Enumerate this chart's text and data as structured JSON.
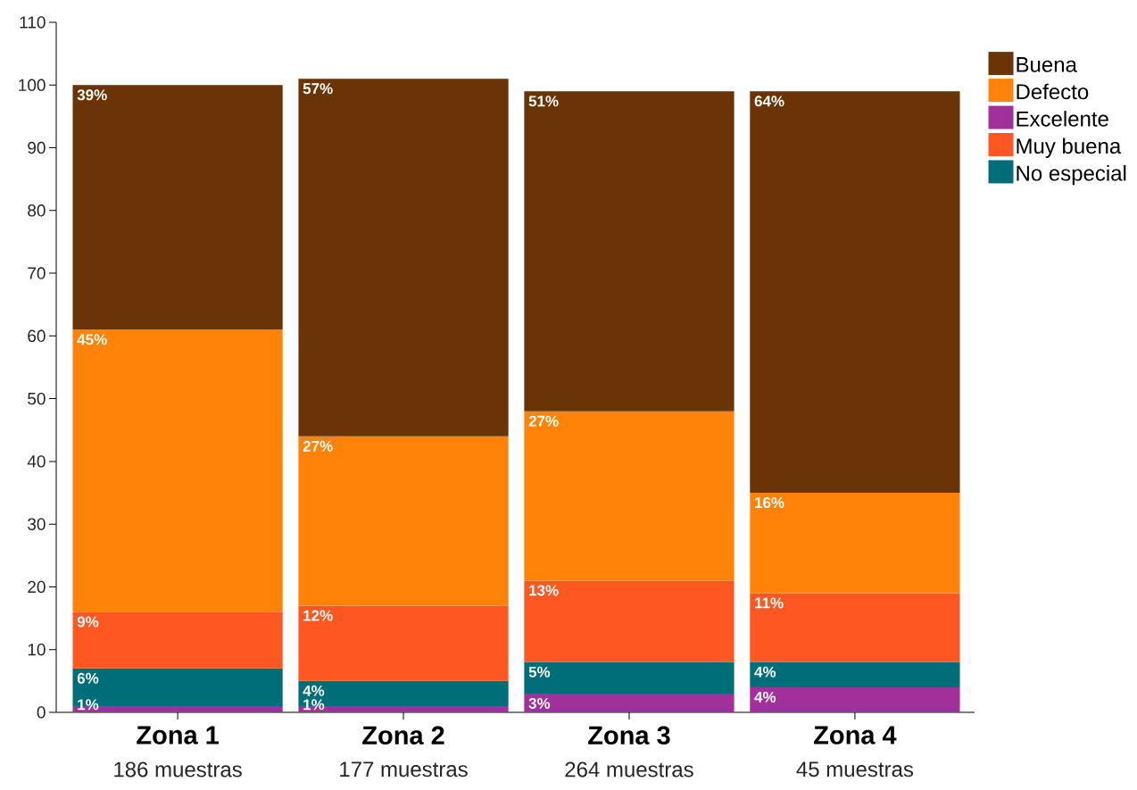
{
  "chart_data": {
    "type": "bar",
    "stacked": true,
    "categories": [
      "Zona 1",
      "Zona 2",
      "Zona 3",
      "Zona 4"
    ],
    "annotations": [
      "186 muestras",
      "177 muestras",
      "264 muestras",
      "45 muestras"
    ],
    "series": [
      {
        "name": "Excelente",
        "color": "#a0309a",
        "values": [
          1,
          1,
          3,
          4
        ],
        "value_labels": [
          "1%",
          "1%",
          "3%",
          "4%"
        ]
      },
      {
        "name": "No especial",
        "color": "#006e78",
        "values": [
          6,
          4,
          5,
          4
        ],
        "value_labels": [
          "6%",
          "4%",
          "5%",
          "4%"
        ]
      },
      {
        "name": "Muy buena",
        "color": "#ff5722",
        "values": [
          9,
          12,
          13,
          11
        ],
        "value_labels": [
          "9%",
          "12%",
          "13%",
          "11%"
        ]
      },
      {
        "name": "Defecto",
        "color": "#ff8308",
        "values": [
          45,
          27,
          27,
          16
        ],
        "value_labels": [
          "45%",
          "27%",
          "27%",
          "16%"
        ]
      },
      {
        "name": "Buena",
        "color": "#6b3407",
        "values": [
          39,
          57,
          51,
          64
        ],
        "value_labels": [
          "39%",
          "57%",
          "51%",
          "64%"
        ]
      }
    ],
    "ylim": [
      0,
      110
    ],
    "yticks": [
      0,
      10,
      20,
      30,
      40,
      50,
      60,
      70,
      80,
      90,
      100,
      110
    ],
    "legend": "right",
    "grid": false
  }
}
